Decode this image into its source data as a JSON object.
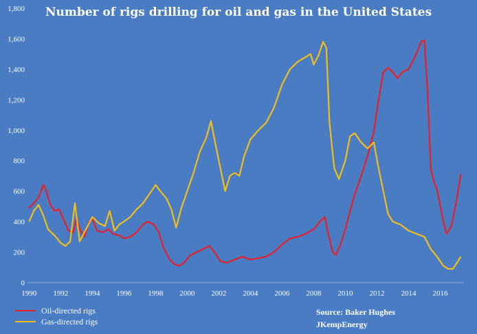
{
  "chart_data": {
    "type": "line",
    "title": "Number of rigs drilling for oil and gas in the United States",
    "xlabel": "",
    "ylabel": "",
    "xlim": [
      1989.9,
      2017.5
    ],
    "ylim": [
      0,
      1800
    ],
    "x_ticks": [
      "1990",
      "1992",
      "1994",
      "1996",
      "1998",
      "2000",
      "2002",
      "2004",
      "2006",
      "2008",
      "2010",
      "2012",
      "2014",
      "2016"
    ],
    "y_ticks": [
      "0",
      "200",
      "400",
      "600",
      "800",
      "1,000",
      "1,200",
      "1,400",
      "1,600",
      "1,800"
    ],
    "grid": false,
    "legend_position": "bottom-left",
    "source_lines": [
      "Source: Baker Hughes",
      "JKempEnergy"
    ],
    "series": [
      {
        "name": "Oil-directed rigs",
        "color": "#e8202a",
        "points": [
          [
            1990.0,
            490
          ],
          [
            1990.3,
            520
          ],
          [
            1990.6,
            560
          ],
          [
            1990.9,
            640
          ],
          [
            1991.1,
            600
          ],
          [
            1991.3,
            520
          ],
          [
            1991.6,
            470
          ],
          [
            1991.9,
            480
          ],
          [
            1992.2,
            410
          ],
          [
            1992.5,
            340
          ],
          [
            1992.8,
            330
          ],
          [
            1993.0,
            420
          ],
          [
            1993.2,
            350
          ],
          [
            1993.5,
            300
          ],
          [
            1993.8,
            400
          ],
          [
            1994.0,
            420
          ],
          [
            1994.3,
            340
          ],
          [
            1994.7,
            330
          ],
          [
            1995.0,
            350
          ],
          [
            1995.3,
            320
          ],
          [
            1995.7,
            310
          ],
          [
            1996.0,
            290
          ],
          [
            1996.4,
            300
          ],
          [
            1996.8,
            330
          ],
          [
            1997.2,
            380
          ],
          [
            1997.5,
            400
          ],
          [
            1997.9,
            380
          ],
          [
            1998.2,
            330
          ],
          [
            1998.5,
            230
          ],
          [
            1998.9,
            150
          ],
          [
            1999.2,
            120
          ],
          [
            1999.5,
            110
          ],
          [
            1999.8,
            130
          ],
          [
            2000.2,
            180
          ],
          [
            2000.6,
            200
          ],
          [
            2001.0,
            220
          ],
          [
            2001.4,
            240
          ],
          [
            2001.8,
            190
          ],
          [
            2002.1,
            140
          ],
          [
            2002.5,
            130
          ],
          [
            2003.0,
            150
          ],
          [
            2003.5,
            170
          ],
          [
            2004.0,
            150
          ],
          [
            2004.5,
            160
          ],
          [
            2005.0,
            170
          ],
          [
            2005.5,
            200
          ],
          [
            2006.0,
            250
          ],
          [
            2006.5,
            290
          ],
          [
            2007.0,
            300
          ],
          [
            2007.5,
            320
          ],
          [
            2008.0,
            350
          ],
          [
            2008.4,
            400
          ],
          [
            2008.7,
            430
          ],
          [
            2008.9,
            330
          ],
          [
            2009.2,
            200
          ],
          [
            2009.4,
            180
          ],
          [
            2009.7,
            250
          ],
          [
            2010.0,
            350
          ],
          [
            2010.3,
            470
          ],
          [
            2010.6,
            580
          ],
          [
            2011.0,
            700
          ],
          [
            2011.4,
            830
          ],
          [
            2011.8,
            990
          ],
          [
            2012.1,
            1200
          ],
          [
            2012.4,
            1380
          ],
          [
            2012.7,
            1410
          ],
          [
            2013.0,
            1380
          ],
          [
            2013.3,
            1340
          ],
          [
            2013.6,
            1380
          ],
          [
            2014.0,
            1400
          ],
          [
            2014.4,
            1480
          ],
          [
            2014.8,
            1580
          ],
          [
            2015.0,
            1590
          ],
          [
            2015.2,
            1250
          ],
          [
            2015.4,
            750
          ],
          [
            2015.6,
            660
          ],
          [
            2015.8,
            610
          ],
          [
            2016.2,
            400
          ],
          [
            2016.4,
            320
          ],
          [
            2016.7,
            370
          ],
          [
            2017.0,
            520
          ],
          [
            2017.3,
            710
          ]
        ]
      },
      {
        "name": "Gas-directed rigs",
        "color": "#f2be1a",
        "points": [
          [
            1990.0,
            400
          ],
          [
            1990.3,
            470
          ],
          [
            1990.6,
            510
          ],
          [
            1990.9,
            440
          ],
          [
            1991.2,
            350
          ],
          [
            1991.6,
            310
          ],
          [
            1992.0,
            260
          ],
          [
            1992.3,
            240
          ],
          [
            1992.6,
            270
          ],
          [
            1992.9,
            520
          ],
          [
            1993.2,
            270
          ],
          [
            1993.6,
            350
          ],
          [
            1994.0,
            430
          ],
          [
            1994.4,
            390
          ],
          [
            1994.8,
            370
          ],
          [
            1995.1,
            470
          ],
          [
            1995.4,
            340
          ],
          [
            1995.7,
            380
          ],
          [
            1996.0,
            400
          ],
          [
            1996.4,
            430
          ],
          [
            1996.8,
            480
          ],
          [
            1997.2,
            520
          ],
          [
            1997.6,
            580
          ],
          [
            1998.0,
            640
          ],
          [
            1998.3,
            600
          ],
          [
            1998.7,
            550
          ],
          [
            1999.0,
            480
          ],
          [
            1999.3,
            360
          ],
          [
            1999.6,
            480
          ],
          [
            2000.0,
            600
          ],
          [
            2000.4,
            720
          ],
          [
            2000.8,
            860
          ],
          [
            2001.2,
            950
          ],
          [
            2001.5,
            1060
          ],
          [
            2001.8,
            900
          ],
          [
            2002.1,
            750
          ],
          [
            2002.4,
            600
          ],
          [
            2002.7,
            700
          ],
          [
            2003.0,
            720
          ],
          [
            2003.3,
            700
          ],
          [
            2003.6,
            830
          ],
          [
            2004.0,
            940
          ],
          [
            2004.5,
            1000
          ],
          [
            2005.0,
            1050
          ],
          [
            2005.5,
            1150
          ],
          [
            2006.0,
            1300
          ],
          [
            2006.5,
            1400
          ],
          [
            2007.0,
            1450
          ],
          [
            2007.5,
            1480
          ],
          [
            2007.8,
            1500
          ],
          [
            2008.0,
            1430
          ],
          [
            2008.3,
            1490
          ],
          [
            2008.6,
            1580
          ],
          [
            2008.8,
            1540
          ],
          [
            2009.0,
            1050
          ],
          [
            2009.3,
            750
          ],
          [
            2009.6,
            680
          ],
          [
            2010.0,
            800
          ],
          [
            2010.3,
            960
          ],
          [
            2010.6,
            980
          ],
          [
            2011.0,
            920
          ],
          [
            2011.4,
            880
          ],
          [
            2011.8,
            920
          ],
          [
            2012.1,
            750
          ],
          [
            2012.4,
            600
          ],
          [
            2012.7,
            450
          ],
          [
            2013.0,
            400
          ],
          [
            2013.5,
            380
          ],
          [
            2014.0,
            340
          ],
          [
            2014.5,
            320
          ],
          [
            2015.0,
            300
          ],
          [
            2015.4,
            220
          ],
          [
            2015.8,
            170
          ],
          [
            2016.2,
            110
          ],
          [
            2016.5,
            90
          ],
          [
            2016.8,
            90
          ],
          [
            2017.0,
            120
          ],
          [
            2017.3,
            170
          ]
        ]
      }
    ]
  }
}
